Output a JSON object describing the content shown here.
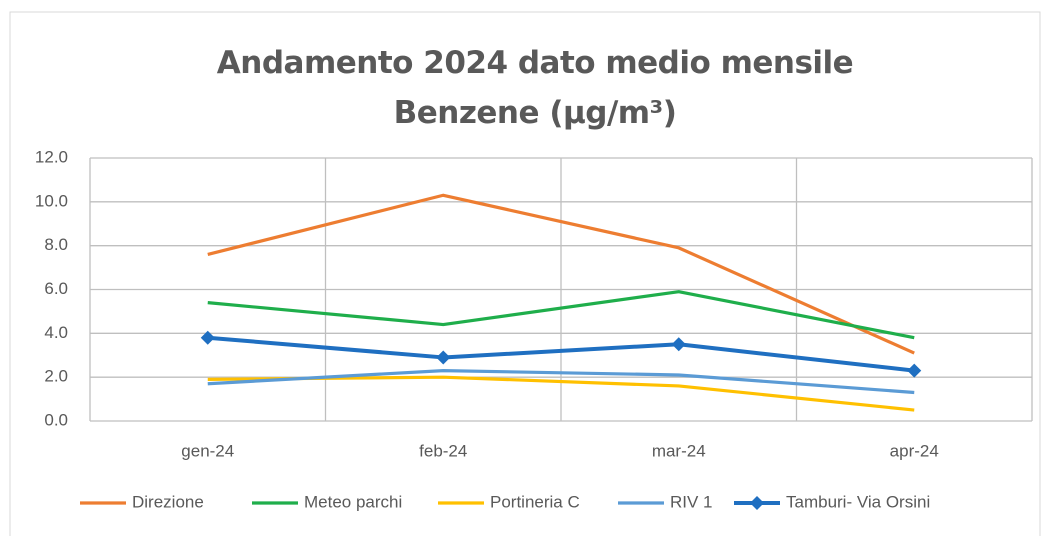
{
  "chart_data": {
    "type": "line",
    "title": "Andamento 2024 dato medio mensile Benzene (µg/m³)",
    "categories": [
      "gen-24",
      "feb-24",
      "mar-24",
      "apr-24"
    ],
    "series": [
      {
        "name": "Direzione",
        "color": "#ed7d31",
        "values": [
          7.6,
          10.3,
          7.9,
          3.1
        ]
      },
      {
        "name": "Meteo parchi",
        "color": "#1fae4b",
        "values": [
          5.4,
          4.4,
          5.9,
          3.8
        ]
      },
      {
        "name": "Portineria C",
        "color": "#ffc000",
        "values": [
          1.9,
          2.0,
          1.6,
          0.5
        ]
      },
      {
        "name": "RIV 1",
        "color": "#5b9bd5",
        "values": [
          1.7,
          2.3,
          2.1,
          1.3
        ]
      },
      {
        "name": "Tamburi- Via Orsini",
        "color": "#1f6fc1",
        "values": [
          3.8,
          2.9,
          3.5,
          2.3
        ],
        "marker": "diamond"
      }
    ],
    "ylim": [
      0,
      12
    ],
    "yticks": [
      {
        "value": 0,
        "label": "0.0"
      },
      {
        "value": 2,
        "label": "2.0"
      },
      {
        "value": 4,
        "label": "4.0"
      },
      {
        "value": 6,
        "label": "6.0"
      },
      {
        "value": 8,
        "label": "8.0"
      },
      {
        "value": 10,
        "label": "10.0"
      },
      {
        "value": 12,
        "label": "12.0"
      }
    ],
    "grid": true,
    "legend": "bottom"
  }
}
